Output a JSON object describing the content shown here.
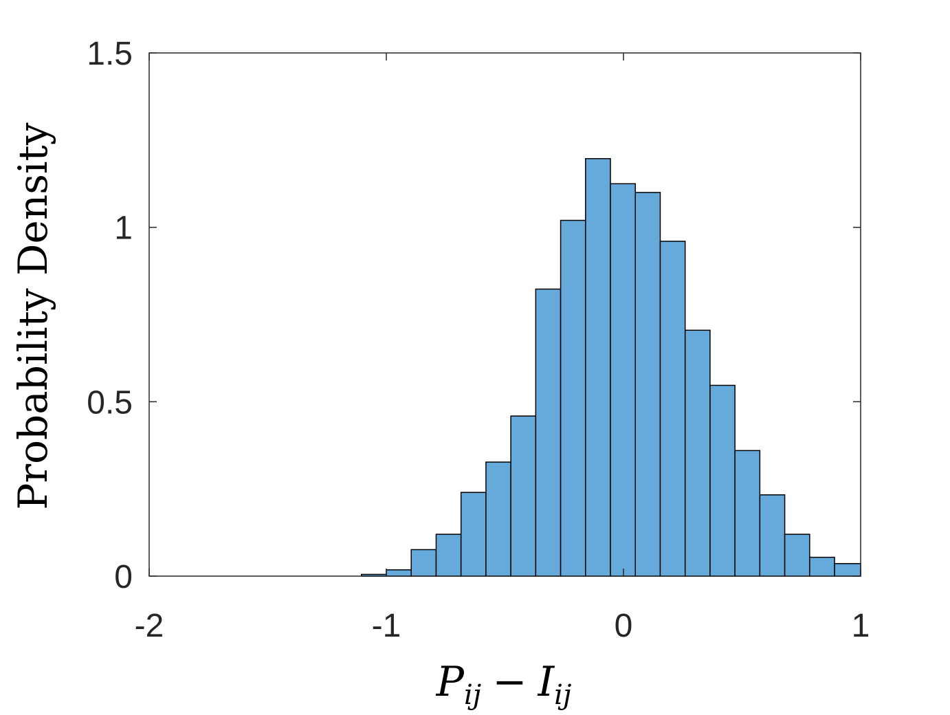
{
  "chart_data": {
    "type": "bar",
    "subtype": "histogram",
    "title": "",
    "xlabel": {
      "p": "P",
      "p_sub": "ij",
      "op": "−",
      "i": "I",
      "i_sub": "ij"
    },
    "ylabel": "Probability Density",
    "xlim": [
      -2,
      1
    ],
    "ylim": [
      0,
      1.5
    ],
    "xticks": [
      "-2",
      "-1",
      "0",
      "1"
    ],
    "yticks": [
      "0",
      "0.5",
      "1",
      "1.5"
    ],
    "bin_width": 0.105,
    "bins": [
      {
        "x0": -1.105,
        "x1": -1.0,
        "value": 0.005
      },
      {
        "x0": -1.0,
        "x1": -0.895,
        "value": 0.018
      },
      {
        "x0": -0.895,
        "x1": -0.79,
        "value": 0.076
      },
      {
        "x0": -0.79,
        "x1": -0.685,
        "value": 0.12
      },
      {
        "x0": -0.685,
        "x1": -0.58,
        "value": 0.24
      },
      {
        "x0": -0.58,
        "x1": -0.475,
        "value": 0.327
      },
      {
        "x0": -0.475,
        "x1": -0.37,
        "value": 0.459
      },
      {
        "x0": -0.37,
        "x1": -0.265,
        "value": 0.823
      },
      {
        "x0": -0.265,
        "x1": -0.16,
        "value": 1.02
      },
      {
        "x0": -0.16,
        "x1": -0.055,
        "value": 1.197
      },
      {
        "x0": -0.055,
        "x1": 0.05,
        "value": 1.125
      },
      {
        "x0": 0.05,
        "x1": 0.155,
        "value": 1.1
      },
      {
        "x0": 0.155,
        "x1": 0.26,
        "value": 0.96
      },
      {
        "x0": 0.26,
        "x1": 0.365,
        "value": 0.705
      },
      {
        "x0": 0.365,
        "x1": 0.47,
        "value": 0.547
      },
      {
        "x0": 0.47,
        "x1": 0.575,
        "value": 0.36
      },
      {
        "x0": 0.575,
        "x1": 0.68,
        "value": 0.233
      },
      {
        "x0": 0.68,
        "x1": 0.785,
        "value": 0.12
      },
      {
        "x0": 0.785,
        "x1": 0.89,
        "value": 0.054
      },
      {
        "x0": 0.89,
        "x1": 1.0,
        "value": 0.036
      }
    ],
    "bar_color": "#66AADB",
    "edge_color": "#000000",
    "axis_color": "#262626",
    "grid": false,
    "legend": "none"
  }
}
